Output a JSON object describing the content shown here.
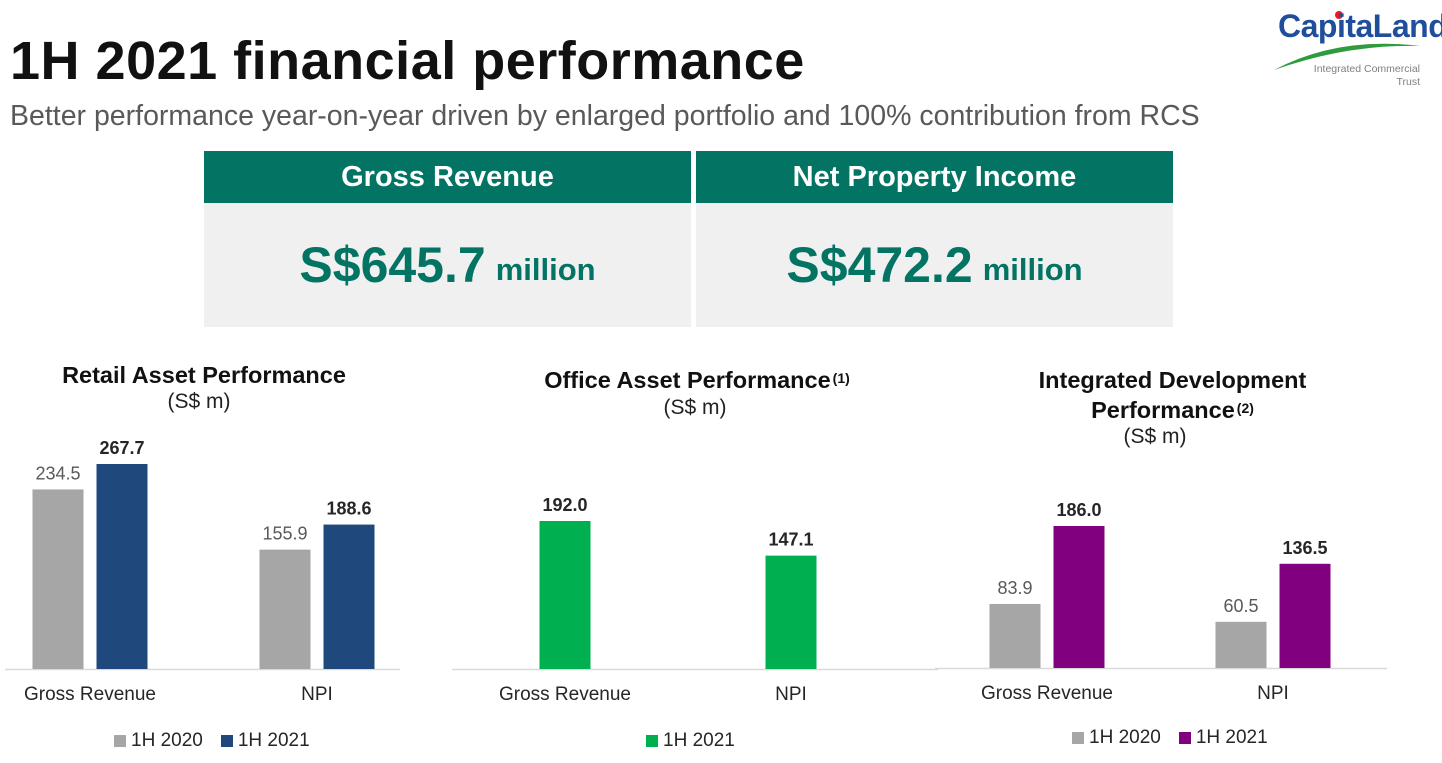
{
  "slide": {
    "title": "1H 2021 financial performance",
    "subtitle": "Better performance year-on-year driven by enlarged portfolio and 100% contribution from RCS"
  },
  "logo": {
    "name": "CapitaLand",
    "tagline_line1": "Integrated Commercial",
    "tagline_line2": "Trust"
  },
  "kpis": [
    {
      "label": "Gross Revenue",
      "value": "S$645.7",
      "unit": "million"
    },
    {
      "label": "Net Property Income",
      "value": "S$472.2",
      "unit": "million"
    }
  ],
  "colors": {
    "kpi_green": "#037464",
    "prev": "#a6a6a6",
    "retail_2021": "#1f497d",
    "office_2021": "#00b050",
    "integrated_2021": "#800080"
  },
  "chart_data": [
    {
      "type": "bar",
      "title": "Retail Asset Performance",
      "footnote": "",
      "unit": "(S$ m)",
      "categories": [
        "Gross Revenue",
        "NPI"
      ],
      "series": [
        {
          "name": "1H 2020",
          "values": [
            234.5,
            155.9
          ],
          "labels": [
            "234.5",
            "155.9"
          ],
          "color": "#a6a6a6"
        },
        {
          "name": "1H 2021",
          "values": [
            267.7,
            188.6
          ],
          "labels": [
            "267.7",
            "188.6"
          ],
          "color": "#1f497d"
        }
      ],
      "ylim": [
        0,
        267.7
      ]
    },
    {
      "type": "bar",
      "title": "Office Asset Performance",
      "footnote": "(1)",
      "unit": "(S$ m)",
      "categories": [
        "Gross Revenue",
        "NPI"
      ],
      "series": [
        {
          "name": "1H 2021",
          "values": [
            192.0,
            147.1
          ],
          "labels": [
            "192.0",
            "147.1"
          ],
          "color": "#00b050"
        }
      ],
      "ylim": [
        0,
        192.0
      ]
    },
    {
      "type": "bar",
      "title": "Integrated Development Performance",
      "title_line1": "Integrated Development",
      "title_line2": "Performance",
      "footnote": "(2)",
      "unit": "(S$ m)",
      "categories": [
        "Gross Revenue",
        "NPI"
      ],
      "series": [
        {
          "name": "1H 2020",
          "values": [
            83.9,
            60.5
          ],
          "labels": [
            "83.9",
            "60.5"
          ],
          "color": "#a6a6a6"
        },
        {
          "name": "1H 2021",
          "values": [
            186.0,
            136.5
          ],
          "labels": [
            "186.0",
            "136.5"
          ],
          "color": "#800080"
        }
      ],
      "ylim": [
        0,
        186.0
      ]
    }
  ]
}
